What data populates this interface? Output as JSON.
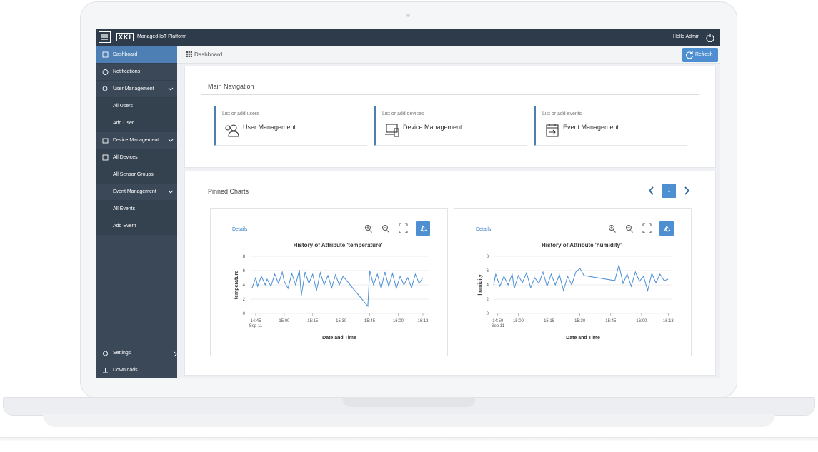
{
  "top_bar": {
    "logo": "XKI",
    "title": "Managed IoT Platform",
    "user": "Hello Admin"
  },
  "sidebar": {
    "items": [
      "Dashboard",
      "Notifications",
      "User Management",
      "All Users",
      "Add User",
      "Device Management",
      "All Devices",
      "All Sensor Groups",
      "Event Management",
      "All Events",
      "Add Event"
    ],
    "bottom": [
      "Settings",
      "Downloads"
    ]
  },
  "breadcrumb": {
    "title": "Dashboard",
    "refresh": "Refresh"
  },
  "main_navigation": {
    "title": "Main Navigation",
    "cards": [
      {
        "caption": "List or add users",
        "label": "User Management"
      },
      {
        "caption": "List or add devices",
        "label": "Device Management"
      },
      {
        "caption": "List or add events",
        "label": "Event Management"
      }
    ]
  },
  "pinned_charts": {
    "title": "Pinned Charts",
    "page": 1,
    "charts": [
      {
        "type": "line",
        "details": "Details",
        "title": "History of Attribute 'temperature'",
        "x_label": "Date and Time",
        "y_label": "temperature",
        "x": [
          "14:43",
          "14:45",
          "14:46",
          "14:48",
          "14:50",
          "14:51",
          "14:53",
          "14:55",
          "14:57",
          "14:59",
          "15:00",
          "15:02",
          "15:04",
          "15:06",
          "15:08",
          "15:09",
          "15:11",
          "15:13",
          "15:15",
          "15:17",
          "15:19",
          "15:21",
          "15:23",
          "15:25",
          "15:27",
          "15:29",
          "15:31",
          "15:44",
          "15:45",
          "15:47",
          "15:49",
          "15:51",
          "15:53",
          "15:55",
          "15:57",
          "15:59",
          "16:01",
          "16:03",
          "16:05",
          "16:07",
          "16:09",
          "16:11",
          "16:13"
        ],
        "values": [
          3.5,
          5,
          3.8,
          5.2,
          4,
          4.8,
          3.8,
          5.5,
          4.2,
          5.8,
          4.5,
          3.5,
          5.6,
          4,
          6.1,
          2.5,
          5.8,
          4.2,
          5.5,
          3.2,
          5.7,
          4,
          5.3,
          3.6,
          5.4,
          4,
          5.2,
          1,
          6,
          4,
          5.5,
          3.5,
          5.8,
          3.8,
          5.6,
          3.5,
          5.2,
          4,
          5,
          3.6,
          5.5,
          4.2,
          5
        ],
        "color": "#4a8fd6",
        "xlim": [
          "14:42",
          "16:16"
        ],
        "xticks": [
          "14:45",
          "15:00",
          "15:15",
          "15:30",
          "15:45",
          "16:00",
          "16:13"
        ],
        "x_date_label": "Sep 11",
        "ylim": [
          0,
          8
        ],
        "yticks": [
          0,
          2,
          4,
          6,
          8
        ],
        "grid": true
      },
      {
        "type": "line",
        "details": "Details",
        "title": "History of Attribute 'humidity'",
        "x_label": "Date and Time",
        "y_label": "humidity",
        "x": [
          "14:48",
          "14:49",
          "14:51",
          "14:53",
          "14:55",
          "14:57",
          "14:58",
          "15:00",
          "15:02",
          "15:04",
          "15:06",
          "15:08",
          "15:10",
          "15:12",
          "15:14",
          "15:16",
          "15:18",
          "15:20",
          "15:22",
          "15:24",
          "15:26",
          "15:28",
          "15:30",
          "15:32",
          "15:47",
          "15:49",
          "15:51",
          "15:53",
          "15:55",
          "15:57",
          "15:59",
          "16:01",
          "16:03",
          "16:05",
          "16:07",
          "16:09",
          "16:11",
          "16:13"
        ],
        "values": [
          4,
          5.5,
          3.8,
          5.2,
          4,
          5.5,
          3.5,
          5.3,
          4.3,
          5.7,
          3.6,
          5,
          4.2,
          5.8,
          3.8,
          5.5,
          4,
          5.4,
          3.2,
          5.2,
          4,
          5.8,
          6.3,
          5.3,
          4.6,
          6.8,
          4.2,
          5.5,
          3.8,
          5.8,
          4.5,
          5.2,
          3.2,
          5.6,
          4.3,
          5.5,
          4.6,
          4.8
        ],
        "color": "#4a8fd6",
        "xlim": [
          "14:48",
          "16:15"
        ],
        "xticks": [
          "14:50",
          "15:00",
          "15:15",
          "15:30",
          "15:45",
          "16:00",
          "16:13"
        ],
        "x_date_label": "Sep 11",
        "ylim": [
          0,
          8
        ],
        "yticks": [
          0,
          2,
          4,
          6,
          8
        ],
        "grid": true
      }
    ]
  }
}
